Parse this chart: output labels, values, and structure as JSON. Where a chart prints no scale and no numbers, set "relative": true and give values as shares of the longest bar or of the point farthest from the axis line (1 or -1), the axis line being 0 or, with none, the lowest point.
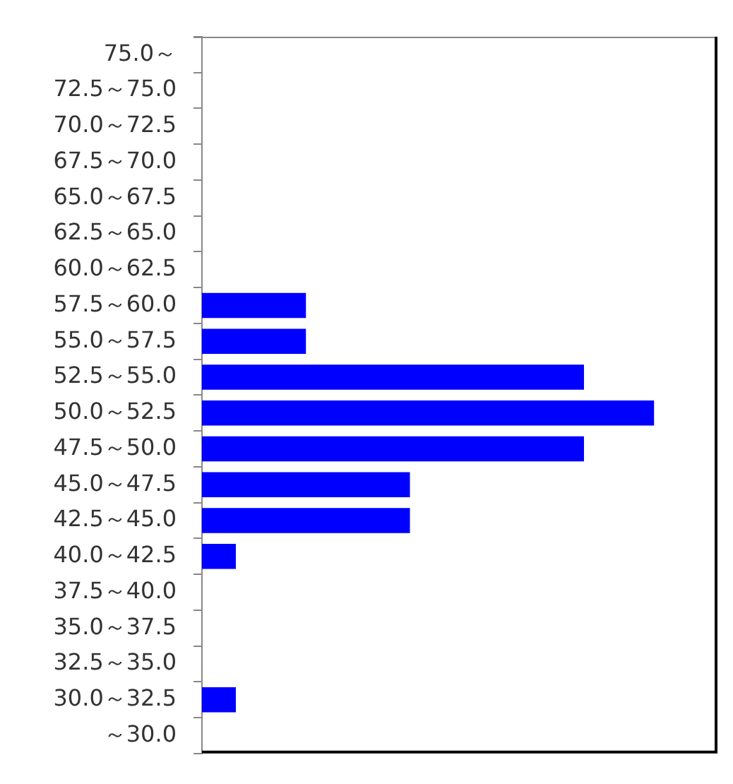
{
  "chart_data": {
    "type": "bar",
    "orientation": "horizontal",
    "relative": true,
    "color": "#0000ff",
    "categories": [
      "75.0～",
      "72.5～75.0",
      "70.0～72.5",
      "67.5～70.0",
      "65.0～67.5",
      "62.5～65.0",
      "60.0～62.5",
      "57.5～60.0",
      "55.0～57.5",
      "52.5～55.0",
      "50.0～52.5",
      "47.5～50.0",
      "45.0～47.5",
      "42.5～45.0",
      "40.0～42.5",
      "37.5～40.0",
      "35.0～37.5",
      "32.5～35.0",
      "30.0～32.5",
      "～30.0"
    ],
    "values": [
      0,
      0,
      0,
      0,
      0,
      0,
      0,
      0.23,
      0.23,
      0.845,
      1,
      0.845,
      0.46,
      0.46,
      0.075,
      0,
      0,
      0,
      0.075,
      0
    ]
  }
}
